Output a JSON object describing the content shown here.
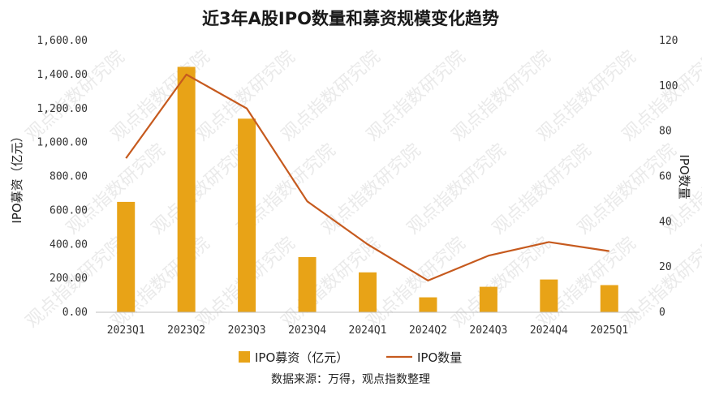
{
  "chart_data": {
    "type": "bar",
    "title": "近3年A股IPO数量和募资规模变化趋势",
    "categories": [
      "2023Q1",
      "2023Q2",
      "2023Q3",
      "2023Q4",
      "2024Q1",
      "2024Q2",
      "2024Q3",
      "2024Q4",
      "2025Q1"
    ],
    "series": [
      {
        "name": "IPO募资（亿元）",
        "type": "bar",
        "axis": "left",
        "color": "#E8A317",
        "values": [
          650,
          1445,
          1140,
          325,
          235,
          88,
          150,
          193,
          160
        ]
      },
      {
        "name": "IPO数量",
        "type": "line",
        "axis": "right",
        "color": "#C65A1E",
        "values": [
          68,
          105,
          90,
          49,
          30,
          14,
          25,
          31,
          27
        ]
      }
    ],
    "ylabel": "IPO募资（亿元）",
    "y2label": "IPO数量",
    "ylim": [
      0,
      1600
    ],
    "y2lim": [
      0,
      120
    ],
    "yticks": [
      "0.00",
      "200.00",
      "400.00",
      "600.00",
      "800.00",
      "1,000.00",
      "1,200.00",
      "1,400.00",
      "1,600.00"
    ],
    "y2ticks": [
      "0",
      "20",
      "40",
      "60",
      "80",
      "100",
      "120"
    ],
    "grid": false,
    "legend_position": "bottom",
    "source": "数据来源：万得，观点指数整理",
    "watermark": "观点指数研究院"
  }
}
